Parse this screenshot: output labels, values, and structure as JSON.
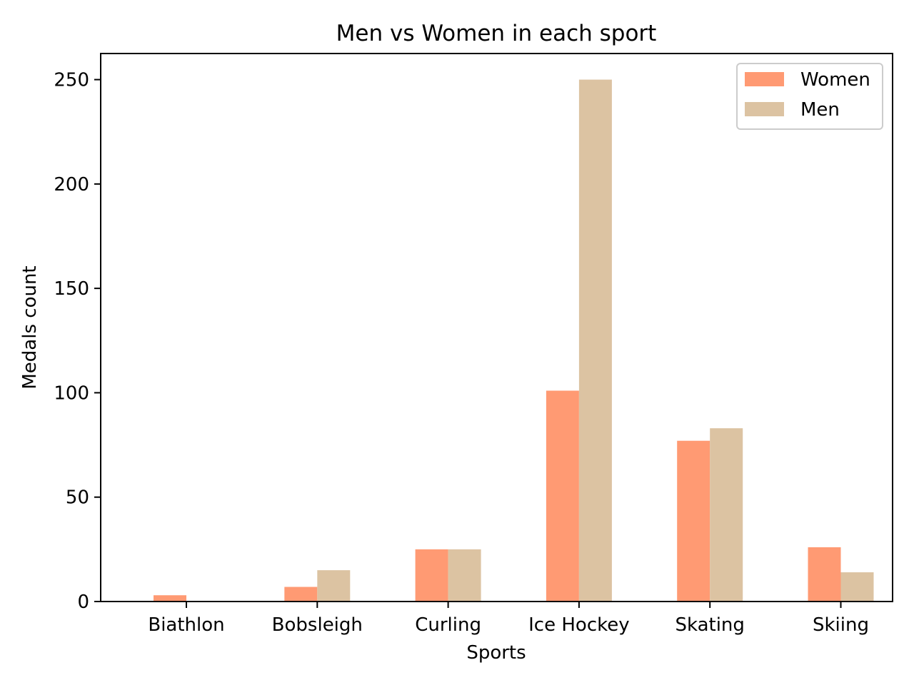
{
  "chart_data": {
    "type": "bar",
    "title": "Men vs Women in each sport",
    "xlabel": "Sports",
    "ylabel": "Medals count",
    "categories": [
      "Biathlon",
      "Bobsleigh",
      "Curling",
      "Ice Hockey",
      "Skating",
      "Skiing"
    ],
    "series": [
      {
        "name": "Women",
        "color": "#FF9A73",
        "values": [
          3,
          7,
          25,
          101,
          77,
          26
        ]
      },
      {
        "name": "Men",
        "color": "#DCC3A2",
        "values": [
          0,
          15,
          25,
          250,
          83,
          14
        ]
      }
    ],
    "ylim": [
      0,
      262.5
    ],
    "yticks": [
      0,
      50,
      100,
      150,
      200,
      250
    ],
    "grid": false,
    "legend_position": "top-right"
  }
}
